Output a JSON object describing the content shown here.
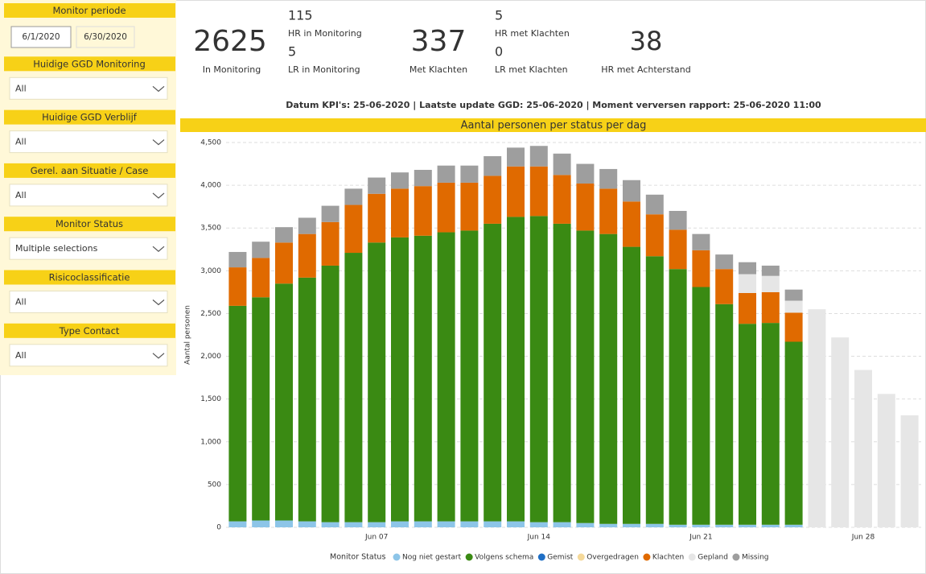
{
  "sidebar": {
    "filters": [
      {
        "title": "Monitor periode",
        "start": "6/1/2020",
        "end": "6/30/2020"
      },
      {
        "title": "Huidige GGD Monitoring",
        "value": "All"
      },
      {
        "title": "Huidige GGD Verblijf",
        "value": "All"
      },
      {
        "title": "Gerel. aan Situatie / Case",
        "value": "All"
      },
      {
        "title": "Monitor Status",
        "value": "Multiple selections"
      },
      {
        "title": "Risicoclassificatie",
        "value": "All"
      },
      {
        "title": "Type Contact",
        "value": "All"
      }
    ]
  },
  "kpis": {
    "in_monitoring": {
      "value": 2625,
      "label": "In Monitoring"
    },
    "hr_in_monitoring": {
      "value": 115,
      "label": "HR in Monitoring"
    },
    "lr_in_monitoring": {
      "value": 5,
      "label": "LR in Monitoring"
    },
    "met_klachten": {
      "value": 337,
      "label": "Met Klachten",
      "color": "#e0701e"
    },
    "hr_met_klachten": {
      "value": 5,
      "label": "HR met Klachten"
    },
    "lr_met_klachten": {
      "value": 0,
      "label": "LR met Klachten"
    },
    "hr_met_achterstand": {
      "value": 38,
      "label": "HR met Achterstand"
    }
  },
  "info": "Datum KPI's: 25-06-2020  |  Laatste update GGD: 25-06-2020  |  Moment verversen rapport: 25-06-2020 11:00",
  "chart_data": {
    "type": "stacked_bar",
    "title": "Aantal personen per status per dag",
    "y_label": "Aantal personen",
    "legend_title": "Monitor Status",
    "categories": [
      null,
      null,
      null,
      null,
      null,
      null,
      "Jun 07",
      null,
      null,
      null,
      null,
      null,
      null,
      "Jun 14",
      null,
      null,
      null,
      null,
      null,
      null,
      "Jun 21",
      null,
      null,
      null,
      null,
      null,
      null,
      "Jun 28",
      null,
      null
    ],
    "ylim": [
      0,
      4500
    ],
    "yticks": [
      0,
      500,
      {
        "value": 1000,
        "label": "1,000"
      },
      {
        "value": 1500,
        "label": "1,500"
      },
      {
        "value": 2000,
        "label": "2,000"
      },
      {
        "value": 2500,
        "label": "2,500"
      },
      {
        "value": 3000,
        "label": "3,000"
      },
      {
        "value": 3500,
        "label": "3,500"
      },
      {
        "value": 4000,
        "label": "4,000"
      },
      {
        "value": 4500,
        "label": "4,500"
      }
    ],
    "grid": true,
    "series": [
      {
        "name": "Nog niet gestart",
        "color": "#8dc5e8",
        "values": [
          70,
          80,
          80,
          70,
          60,
          60,
          60,
          70,
          70,
          70,
          70,
          70,
          70,
          60,
          60,
          50,
          40,
          40,
          40,
          30,
          30,
          30,
          30,
          30,
          30,
          null,
          null,
          null,
          null,
          null
        ]
      },
      {
        "name": "Volgens schema",
        "color": "#3a8a13",
        "values": [
          2520,
          2610,
          2770,
          2850,
          3000,
          3150,
          3270,
          3320,
          3340,
          3380,
          3400,
          3480,
          3560,
          3580,
          3490,
          3420,
          3390,
          3240,
          3130,
          2990,
          2780,
          2580,
          2350,
          2360,
          2140,
          null,
          null,
          null,
          null,
          null
        ]
      },
      {
        "name": "Gemist",
        "color": "#1f6fc5",
        "values": [
          null,
          null,
          null,
          null,
          null,
          null,
          null,
          null,
          null,
          null,
          null,
          null,
          null,
          null,
          null,
          null,
          null,
          null,
          null,
          null,
          null,
          null,
          null,
          null,
          null,
          null,
          null,
          null,
          null,
          null
        ]
      },
      {
        "name": "Overgedragen",
        "color": "#f5d99a",
        "values": [
          null,
          null,
          null,
          null,
          null,
          null,
          null,
          null,
          null,
          null,
          null,
          null,
          null,
          null,
          null,
          null,
          null,
          null,
          null,
          null,
          null,
          null,
          null,
          null,
          null,
          null,
          null,
          null,
          null,
          null
        ]
      },
      {
        "name": "Klachten",
        "color": "#e06a00",
        "values": [
          450,
          460,
          480,
          510,
          510,
          560,
          570,
          570,
          580,
          580,
          560,
          560,
          590,
          580,
          570,
          550,
          530,
          530,
          490,
          460,
          430,
          410,
          360,
          360,
          340,
          null,
          null,
          null,
          null,
          null
        ]
      },
      {
        "name": "Gepland",
        "color": "#e6e6e6",
        "values": [
          null,
          null,
          null,
          null,
          null,
          null,
          null,
          null,
          null,
          null,
          null,
          null,
          null,
          null,
          null,
          null,
          null,
          null,
          null,
          null,
          null,
          null,
          220,
          190,
          140,
          2550,
          2220,
          1840,
          1560,
          1310
        ]
      },
      {
        "name": "Missing",
        "color": "#9e9e9e",
        "values": [
          180,
          190,
          180,
          190,
          190,
          190,
          190,
          190,
          190,
          200,
          200,
          230,
          220,
          240,
          250,
          230,
          230,
          250,
          230,
          220,
          190,
          170,
          140,
          120,
          130,
          null,
          null,
          null,
          null,
          null
        ]
      }
    ]
  }
}
